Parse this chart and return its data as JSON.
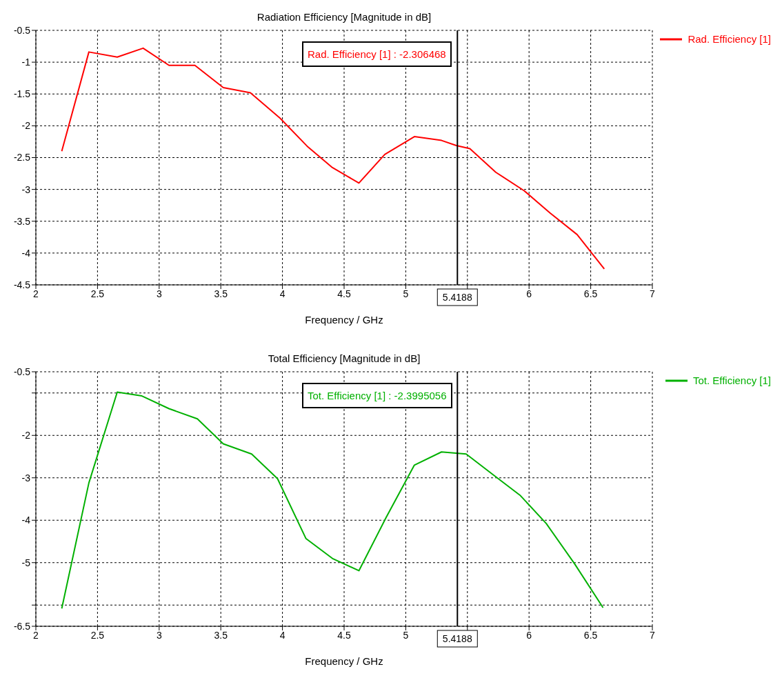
{
  "chart_data": [
    {
      "type": "line",
      "title": "Radiation Efficiency [Magnitude in dB]",
      "xlabel": "Frequency / GHz",
      "xlim": [
        2,
        7
      ],
      "xticks": [
        2,
        2.5,
        3,
        3.5,
        4,
        4.5,
        5,
        {
          "value": 5.5,
          "label": null
        },
        6,
        6.5,
        7
      ],
      "ylim": [
        -4.5,
        -0.5
      ],
      "yticks": [
        -4.5,
        -4,
        -3.5,
        -3,
        -2.5,
        -2,
        -1.5,
        -1,
        -0.5
      ],
      "grid": true,
      "legend": "top right",
      "marker": "none",
      "line_style": "solid",
      "ref_lines": [
        {
          "axis": "x",
          "value": 5.4188,
          "label": "5.4188",
          "color": "#000000"
        }
      ],
      "annotations": [
        "Rad. Efficiency [1] : -2.306468"
      ],
      "series": [
        {
          "name": "Rad. Efficiency [1]",
          "color": "#ff0000",
          "x": [
            2.21,
            2.43,
            2.66,
            2.87,
            3.08,
            3.29,
            3.52,
            3.74,
            3.98,
            4.2,
            4.4,
            4.62,
            4.83,
            5.07,
            5.29,
            5.41,
            5.52,
            5.73,
            5.96,
            6.17,
            6.39,
            6.61
          ],
          "values": [
            -2.4,
            -0.84,
            -0.92,
            -0.78,
            -1.05,
            -1.05,
            -1.4,
            -1.48,
            -1.88,
            -2.32,
            -2.65,
            -2.9,
            -2.45,
            -2.17,
            -2.23,
            -2.31,
            -2.36,
            -2.73,
            -3.02,
            -3.37,
            -3.71,
            -4.25
          ]
        }
      ]
    },
    {
      "type": "line",
      "title": "Total Efficiency [Magnitude in dB]",
      "xlabel": "Frequency / GHz",
      "xlim": [
        2,
        7
      ],
      "xticks": [
        2,
        2.5,
        3,
        3.5,
        4,
        4.5,
        5,
        {
          "value": 5.5,
          "label": null
        },
        6,
        6.5,
        7
      ],
      "ylim": [
        -6.5,
        -0.5
      ],
      "yticks": [
        -6.5,
        {
          "value": -6,
          "label": null
        },
        -5,
        -4,
        -3,
        -2,
        {
          "value": -1,
          "label": null
        },
        -0.5
      ],
      "grid": true,
      "legend": "top right",
      "marker": "none",
      "line_style": "solid",
      "ref_lines": [
        {
          "axis": "x",
          "value": 5.4188,
          "label": "5.4188",
          "color": "#000000"
        }
      ],
      "annotations": [
        "Tot. Efficiency [1] : -2.3995056"
      ],
      "series": [
        {
          "name": "Tot. Efficiency [1]",
          "color": "#00b000",
          "x": [
            2.21,
            2.43,
            2.66,
            2.86,
            3.08,
            3.31,
            3.52,
            3.75,
            3.96,
            4.19,
            4.41,
            4.62,
            4.84,
            5.07,
            5.29,
            5.49,
            5.71,
            5.93,
            6.14,
            6.37,
            6.6
          ],
          "values": [
            -6.08,
            -3.12,
            -0.98,
            -1.07,
            -1.37,
            -1.61,
            -2.2,
            -2.44,
            -3.02,
            -4.43,
            -4.91,
            -5.19,
            -3.94,
            -2.7,
            -2.39,
            -2.44,
            -2.93,
            -3.42,
            -4.08,
            -5.03,
            -6.06
          ]
        }
      ]
    }
  ]
}
